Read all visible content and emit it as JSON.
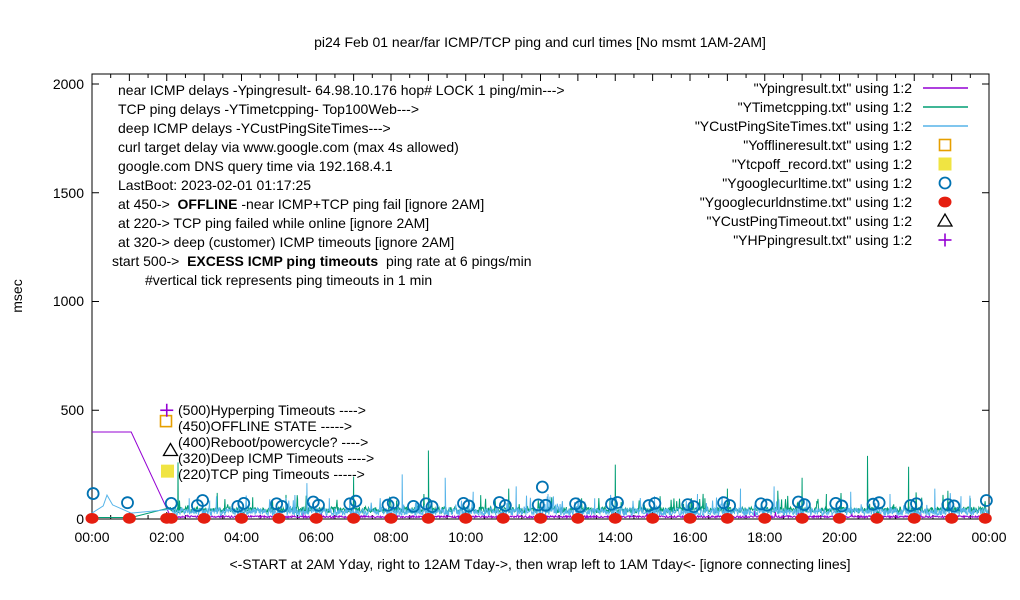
{
  "chart_data": {
    "type": "line",
    "title": "pi24 Feb 01  near/far ICMP/TCP ping and curl times [No msmt 1AM-2AM]",
    "ylabel": "msec",
    "xlabel": "<-START at 2AM Yday, right to 12AM Tday->, then wrap left to 1AM Tday<- [ignore connecting lines]",
    "ylim": [
      0,
      2050
    ],
    "xlim_hours": [
      0,
      24
    ],
    "grid": false,
    "legend_position": "top-right",
    "y_ticks": [
      0,
      500,
      1000,
      1500,
      2000
    ],
    "y_tick_labels": [
      "0",
      "500",
      "1000",
      "1500",
      "2000"
    ],
    "x_tick_hours": [
      0,
      2,
      4,
      6,
      8,
      10,
      12,
      14,
      16,
      18,
      20,
      22,
      24
    ],
    "x_tick_labels": [
      "00:00",
      "02:00",
      "04:00",
      "06:00",
      "08:00",
      "10:00",
      "12:00",
      "14:00",
      "16:00",
      "18:00",
      "20:00",
      "22:00",
      "00:00"
    ],
    "x_minor_per_hour": 2,
    "noise_seed": 42,
    "info_lines": [
      {
        "text": "near ICMP delays -Ypingresult- 64.98.10.176 hop# LOCK 1 ping/min--->"
      },
      {
        "text": "TCP ping delays -YTimetcpping- Top100Web--->"
      },
      {
        "text": "deep ICMP delays -YCustPingSiteTimes--->"
      },
      {
        "text": "curl target delay via www.google.com (max 4s allowed)"
      },
      {
        "text": "google.com DNS query time via 192.168.4.1"
      },
      {
        "text": "LastBoot: 2023-02-01 01:17:25"
      },
      {
        "pre": "at 450->  ",
        "bold": "OFFLINE",
        "post": " -near ICMP+TCP ping fail [ignore 2AM]"
      },
      {
        "text": "at 220-> TCP ping failed while online [ignore 2AM]"
      },
      {
        "text": "at 320-> deep (customer) ICMP timeouts [ignore 2AM]"
      },
      {
        "pre": "start 500->  ",
        "bold": "EXCESS ICMP ping timeouts",
        "post": "  ping rate at 6 pings/min"
      },
      {
        "text": "#vertical tick represents ping timeouts in 1 min"
      }
    ],
    "annotations": [
      "(500)Hyperping Timeouts ---->",
      "(450)OFFLINE STATE ----->",
      "(400)Reboot/powercycle? ---->",
      "(320)Deep ICMP Timeouts ---->",
      "(220)TCP ping Timeouts ----->"
    ],
    "legend": [
      {
        "label": "\"Ypingresult.txt\" using 1:2",
        "marker": "line",
        "color": "#9400d3"
      },
      {
        "label": "\"YTimetcpping.txt\" using 1:2",
        "marker": "line",
        "color": "#009e73"
      },
      {
        "label": "\"YCustPingSiteTimes.txt\" using 1:2",
        "marker": "line",
        "color": "#56b4e9"
      },
      {
        "label": "\"Yofflineresult.txt\" using 1:2",
        "marker": "square-open",
        "color": "#e69f00"
      },
      {
        "label": "\"Ytcpoff_record.txt\" using 1:2",
        "marker": "square-filled",
        "color": "#f0e442"
      },
      {
        "label": "\"Ygooglecurltime.txt\" using 1:2",
        "marker": "circle-open",
        "color": "#0072b2"
      },
      {
        "label": "\"Ygooglecurldnstime.txt\" using 1:2",
        "marker": "circle-filled",
        "color": "#e51e10"
      },
      {
        "label": "\"YCustPingTimeout.txt\" using 1:2",
        "marker": "triangle-open",
        "color": "#000000"
      },
      {
        "label": "\"YHPpingresult.txt\" using 1:2",
        "marker": "plus",
        "color": "#9400d3"
      }
    ],
    "series": [
      {
        "name": "Ypingresult.txt",
        "style": "line",
        "color": "#9400d3",
        "points": [
          [
            0,
            400
          ],
          [
            1.05,
            400
          ]
        ],
        "band": {
          "t0": 2.1,
          "t1": 24,
          "base": 6,
          "jitter": 9,
          "spike_chance": 0.02,
          "spike_max": 28
        }
      },
      {
        "name": "YTimetcpping.txt",
        "style": "line",
        "color": "#009e73",
        "points": [
          [
            0,
            7
          ],
          [
            1.05,
            7
          ]
        ],
        "band": {
          "t0": 2.1,
          "t1": 24,
          "base": 28,
          "jitter": 28,
          "spike_chance": 0.05,
          "spike_max": 70
        },
        "spikes": [
          [
            2.3,
            260
          ],
          [
            3.35,
            120
          ],
          [
            4.3,
            100
          ],
          [
            5.5,
            90
          ],
          [
            7.0,
            195
          ],
          [
            8.15,
            85
          ],
          [
            9.0,
            315
          ],
          [
            10.4,
            110
          ],
          [
            11.15,
            140
          ],
          [
            12.3,
            100
          ],
          [
            13.1,
            95
          ],
          [
            14.0,
            250
          ],
          [
            15.2,
            105
          ],
          [
            16.4,
            95
          ],
          [
            17.0,
            140
          ],
          [
            18.35,
            130
          ],
          [
            19.0,
            190
          ],
          [
            19.65,
            115
          ],
          [
            20.75,
            290
          ],
          [
            21.85,
            240
          ],
          [
            22.9,
            130
          ],
          [
            23.5,
            95
          ]
        ]
      },
      {
        "name": "YCustPingSiteTimes.txt",
        "style": "line",
        "color": "#56b4e9",
        "points": [
          [
            0,
            27
          ],
          [
            1.05,
            27
          ]
        ],
        "band": {
          "t0": 2.1,
          "t1": 24,
          "base": 16,
          "jitter": 34,
          "spike_chance": 0.09,
          "spike_max": 70
        },
        "spikes": [
          [
            0.3,
            60
          ],
          [
            0.4,
            110
          ],
          [
            0.55,
            65
          ],
          [
            2.6,
            95
          ],
          [
            3.15,
            85
          ],
          [
            5.75,
            165
          ],
          [
            6.35,
            95
          ],
          [
            8.3,
            205
          ],
          [
            9.45,
            190
          ],
          [
            10.2,
            125
          ],
          [
            11.35,
            150
          ],
          [
            12.2,
            115
          ],
          [
            13.45,
            95
          ],
          [
            15.05,
            105
          ],
          [
            16.2,
            115
          ],
          [
            17.35,
            140
          ],
          [
            18.25,
            150
          ],
          [
            20.3,
            125
          ],
          [
            21.35,
            115
          ],
          [
            22.55,
            140
          ],
          [
            23.25,
            105
          ]
        ]
      },
      {
        "name": "Yofflineresult.txt",
        "style": "square-open",
        "color": "#e69f00",
        "points": [
          [
            1.98,
            450
          ]
        ]
      },
      {
        "name": "Ytcpoff_record.txt",
        "style": "square-filled",
        "color": "#f0e442",
        "points": [
          [
            2.02,
            220
          ]
        ]
      },
      {
        "name": "Ygooglecurltime.txt",
        "style": "circle-open",
        "color": "#0072b2",
        "points": [
          [
            0.03,
            117
          ],
          [
            0.95,
            75
          ],
          [
            2.12,
            72
          ],
          [
            2.82,
            62
          ],
          [
            2.96,
            85
          ],
          [
            3.9,
            58
          ],
          [
            4.06,
            72
          ],
          [
            4.94,
            70
          ],
          [
            5.08,
            58
          ],
          [
            5.92,
            78
          ],
          [
            6.06,
            63
          ],
          [
            6.9,
            70
          ],
          [
            7.06,
            82
          ],
          [
            7.92,
            64
          ],
          [
            8.06,
            74
          ],
          [
            8.6,
            58
          ],
          [
            8.94,
            70
          ],
          [
            9.1,
            57
          ],
          [
            9.94,
            72
          ],
          [
            10.08,
            60
          ],
          [
            10.9,
            76
          ],
          [
            11.06,
            62
          ],
          [
            11.94,
            65
          ],
          [
            12.05,
            147
          ],
          [
            12.14,
            63
          ],
          [
            12.94,
            70
          ],
          [
            13.06,
            57
          ],
          [
            13.9,
            68
          ],
          [
            14.06,
            76
          ],
          [
            14.9,
            62
          ],
          [
            15.06,
            72
          ],
          [
            15.94,
            66
          ],
          [
            16.1,
            57
          ],
          [
            16.9,
            75
          ],
          [
            17.06,
            62
          ],
          [
            17.9,
            70
          ],
          [
            18.06,
            64
          ],
          [
            18.9,
            78
          ],
          [
            19.06,
            66
          ],
          [
            19.9,
            72
          ],
          [
            20.06,
            60
          ],
          [
            20.9,
            68
          ],
          [
            21.06,
            75
          ],
          [
            21.9,
            62
          ],
          [
            22.06,
            70
          ],
          [
            22.9,
            66
          ],
          [
            23.06,
            60
          ],
          [
            23.93,
            85
          ]
        ]
      },
      {
        "name": "Ygooglecurldnstime.txt",
        "style": "circle-filled",
        "color": "#e51e10",
        "points": [
          [
            0,
            3
          ],
          [
            1,
            3
          ],
          [
            2,
            3
          ],
          [
            2.12,
            3
          ],
          [
            3,
            3
          ],
          [
            4,
            3
          ],
          [
            5,
            3
          ],
          [
            6,
            3
          ],
          [
            7,
            3
          ],
          [
            8,
            3
          ],
          [
            9,
            3
          ],
          [
            10,
            3
          ],
          [
            11,
            3
          ],
          [
            12,
            3
          ],
          [
            13,
            3
          ],
          [
            14,
            3
          ],
          [
            15,
            3
          ],
          [
            16,
            3
          ],
          [
            17,
            3
          ],
          [
            18,
            3
          ],
          [
            19,
            3
          ],
          [
            20,
            3
          ],
          [
            21,
            3
          ],
          [
            22,
            3
          ],
          [
            23,
            3
          ],
          [
            23.9,
            3
          ]
        ]
      },
      {
        "name": "YCustPingTimeout.txt",
        "style": "triangle-open",
        "color": "#000000",
        "points": [
          [
            2.1,
            315
          ]
        ]
      },
      {
        "name": "YHPpingresult.txt",
        "style": "plus",
        "color": "#9400d3",
        "points": [
          [
            2.0,
            500
          ]
        ]
      }
    ]
  }
}
